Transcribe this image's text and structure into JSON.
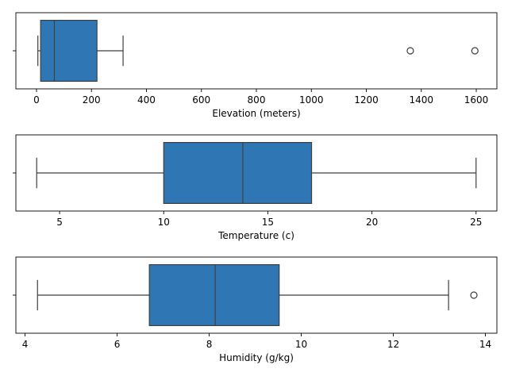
{
  "chart_data": [
    {
      "type": "box",
      "xlabel": "Elevation (meters)",
      "xlim": [
        -75,
        1675
      ],
      "xticks": [
        0,
        200,
        400,
        600,
        800,
        1000,
        1200,
        1400,
        1600
      ],
      "whisker_low": 5,
      "q1": 15,
      "median": 65,
      "q3": 220,
      "whisker_high": 315,
      "outliers": [
        1360,
        1595
      ],
      "color": "#2f77b4"
    },
    {
      "type": "box",
      "xlabel": "Temperature (c)",
      "xlim": [
        2.9,
        26.0
      ],
      "xticks": [
        5,
        10,
        15,
        20,
        25
      ],
      "whisker_low": 3.9,
      "q1": 10.0,
      "median": 13.8,
      "q3": 17.1,
      "whisker_high": 25.0,
      "outliers": [],
      "color": "#2f77b4"
    },
    {
      "type": "box",
      "xlabel": "Humidity (g/kg)",
      "xlim": [
        3.8,
        14.25
      ],
      "xticks": [
        4,
        6,
        8,
        10,
        12,
        14
      ],
      "whisker_low": 4.27,
      "q1": 6.7,
      "median": 8.13,
      "q3": 9.52,
      "whisker_high": 13.2,
      "outliers": [
        13.75
      ],
      "color": "#2f77b4"
    }
  ]
}
